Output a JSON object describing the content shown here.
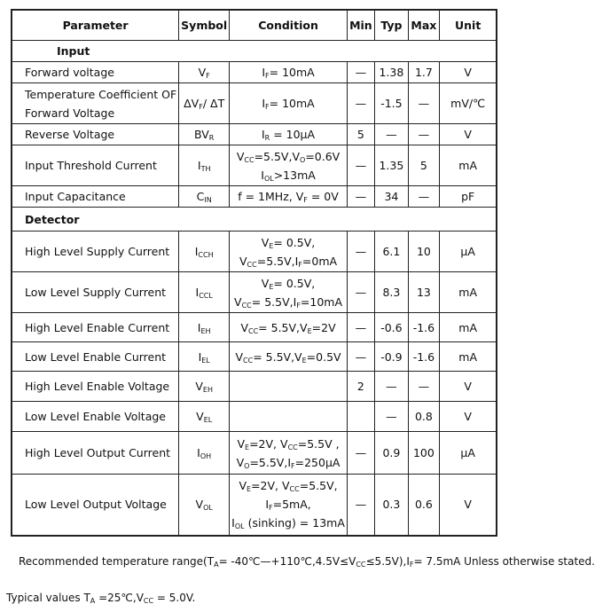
{
  "header": [
    "Parameter",
    "Symbol",
    "Condition",
    "Min",
    "Typ",
    "Max",
    "Unit"
  ],
  "rows": [
    {
      "section": "Input",
      "indent": true
    },
    {
      "param": [
        [
          "Forward voltage"
        ]
      ],
      "symbol": [
        [
          "V",
          {
            "s": "F"
          }
        ]
      ],
      "condition": [
        [
          {
            "s": ""
          },
          "I",
          {
            "s": "F"
          },
          "= 10mA"
        ]
      ],
      "min": "—",
      "typ": "1.38",
      "max": "1.7",
      "unit": "V"
    },
    {
      "param": [
        [
          "Temperature Coefficient OF"
        ],
        [
          "Forward Voltage"
        ]
      ],
      "symbol": [
        [
          "ΔV",
          {
            "s": "F"
          },
          "/ ΔT"
        ]
      ],
      "condition": [
        [
          "I",
          {
            "s": "F"
          },
          "= 10mA"
        ]
      ],
      "min": "—",
      "typ": "-1.5",
      "max": "—",
      "unit": "mV/℃"
    },
    {
      "param": [
        [
          "Reverse Voltage"
        ]
      ],
      "symbol": [
        [
          "BV",
          {
            "s": "R"
          }
        ]
      ],
      "condition": [
        [
          "I",
          {
            "s": "R"
          },
          " = 10μA"
        ]
      ],
      "min": "5",
      "typ": "—",
      "max": "—",
      "unit": "V"
    },
    {
      "param": [
        [
          "Input Threshold Current"
        ]
      ],
      "symbol": [
        [
          "I",
          {
            "s": "TH"
          }
        ]
      ],
      "condition": [
        [
          "V",
          {
            "s": "CC"
          },
          "=5.5V,V",
          {
            "s": "O"
          },
          "=0.6V"
        ],
        [
          "I",
          {
            "s": "OL"
          },
          ">13mA"
        ]
      ],
      "min": "—",
      "typ": "1.35",
      "max": "5",
      "unit": "mA"
    },
    {
      "param": [
        [
          "Input Capacitance"
        ]
      ],
      "symbol": [
        [
          "C",
          {
            "s": "IN"
          }
        ]
      ],
      "condition": [
        [
          "f = 1MHz, V",
          {
            "s": "F"
          },
          " = 0V"
        ]
      ],
      "min": "—",
      "typ": "34",
      "max": "—",
      "unit": "pF"
    },
    {
      "section": "Detector"
    },
    {
      "param": [
        [
          "High Level Supply Current"
        ]
      ],
      "symbol": [
        [
          "I",
          {
            "s": "CCH"
          }
        ]
      ],
      "condition": [
        [
          "V",
          {
            "s": "E"
          },
          "= 0.5V,"
        ],
        [
          "V",
          {
            "s": "CC"
          },
          "=5.5V,I",
          {
            "s": "F"
          },
          "=0mA"
        ]
      ],
      "min": "—",
      "typ": "6.1",
      "max": "10",
      "unit": "μA"
    },
    {
      "param": [
        [
          "Low Level Supply Current"
        ]
      ],
      "symbol": [
        [
          "I",
          {
            "s": "CCL"
          }
        ]
      ],
      "condition": [
        [
          "V",
          {
            "s": "E"
          },
          "= 0.5V,"
        ],
        [
          "V",
          {
            "s": "CC"
          },
          "= 5.5V,I",
          {
            "s": "F"
          },
          "=10mA"
        ]
      ],
      "min": "—",
      "typ": "8.3",
      "max": "13",
      "unit": "mA"
    },
    {
      "param": [
        [
          "High Level Enable Current"
        ]
      ],
      "symbol": [
        [
          "I",
          {
            "s": "EH"
          }
        ]
      ],
      "condition": [
        [
          "V",
          {
            "s": "CC"
          },
          "= 5.5V,V",
          {
            "s": "E"
          },
          "=2V"
        ]
      ],
      "min": "—",
      "typ": "-0.6",
      "max": "-1.6",
      "unit": "mA"
    },
    {
      "param": [
        [
          "Low Level Enable Current"
        ]
      ],
      "symbol": [
        [
          "I",
          {
            "s": "EL"
          }
        ]
      ],
      "condition": [
        [
          "V",
          {
            "s": "CC"
          },
          "= 5.5V,V",
          {
            "s": "E"
          },
          "=0.5V"
        ]
      ],
      "min": "—",
      "typ": "-0.9",
      "max": "-1.6",
      "unit": "mA"
    },
    {
      "param": [
        [
          "High Level Enable Voltage"
        ]
      ],
      "symbol": [
        [
          "V",
          {
            "s": "EH"
          }
        ]
      ],
      "condition": [],
      "min": "2",
      "typ": "—",
      "max": "—",
      "unit": "V"
    },
    {
      "param": [
        [
          "Low Level Enable Voltage"
        ]
      ],
      "symbol": [
        [
          "V",
          {
            "s": "EL"
          }
        ]
      ],
      "condition": [],
      "min": "",
      "typ": "—",
      "max": "0.8",
      "unit": "V"
    },
    {
      "param": [
        [
          "High Level Output Current"
        ]
      ],
      "symbol": [
        [
          "I",
          {
            "s": "OH"
          }
        ]
      ],
      "condition": [
        [
          "V",
          {
            "s": "E"
          },
          "=2V, V",
          {
            "s": "CC"
          },
          "=5.5V ,"
        ],
        [
          "V",
          {
            "s": "O"
          },
          "=5.5V,I",
          {
            "s": "F"
          },
          "=250μA"
        ]
      ],
      "min": "—",
      "typ": "0.9",
      "max": "100",
      "unit": "μA"
    },
    {
      "param": [
        [
          "Low Level Output Voltage"
        ]
      ],
      "symbol": [
        [
          "V",
          {
            "s": "OL"
          }
        ]
      ],
      "condition": [
        [
          "V",
          {
            "s": "E"
          },
          "=2V, V",
          {
            "s": "CC"
          },
          "=5.5V,"
        ],
        [
          "I",
          {
            "s": "F"
          },
          "=5mA,"
        ],
        [
          "I",
          {
            "s": "OL"
          },
          " (sinking) = 13mA"
        ]
      ],
      "min": "—",
      "typ": "0.3",
      "max": "0.6",
      "unit": "V"
    }
  ],
  "notes": [
    [
      "Recommended temperature range(T",
      {
        "s": "A"
      },
      "= -40℃—+110℃,4.5V≤V",
      {
        "s": "CC"
      },
      "≤5.5V),I",
      {
        "s": "F"
      },
      "= 7.5mA Unless otherwise stated."
    ],
    [
      "Typical values T",
      {
        "s": "A"
      },
      " =25℃,V",
      {
        "s": "CC"
      },
      " = 5.0V."
    ]
  ]
}
